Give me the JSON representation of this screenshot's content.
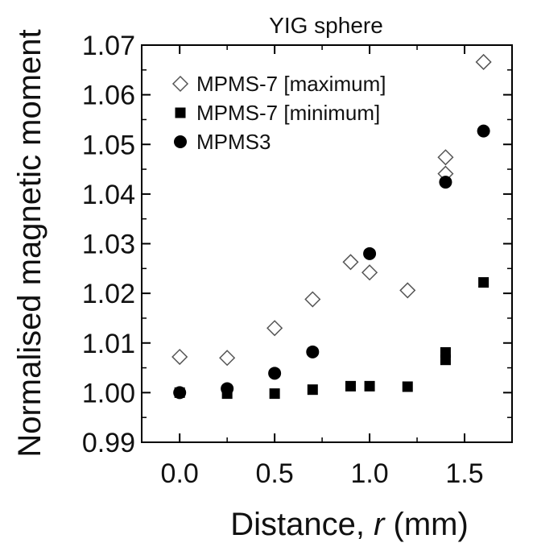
{
  "chart_data": {
    "type": "scatter",
    "title": "YIG sphere",
    "xlabel_prefix": "Distance, ",
    "xlabel_var": "r",
    "xlabel_suffix": " (mm)",
    "ylabel": "Normalised magnetic moment",
    "xlim": [
      -0.2,
      1.75
    ],
    "ylim": [
      0.99,
      1.07
    ],
    "xticks": [
      0.0,
      0.5,
      1.0,
      1.5
    ],
    "xtick_labels": [
      "0.0",
      "0.5",
      "1.0",
      "1.5"
    ],
    "yticks": [
      0.99,
      1.0,
      1.01,
      1.02,
      1.03,
      1.04,
      1.05,
      1.06,
      1.07
    ],
    "ytick_labels": [
      "0.99",
      "1.00",
      "1.01",
      "1.02",
      "1.03",
      "1.04",
      "1.05",
      "1.06",
      "1.07"
    ],
    "legend_position": "top-left",
    "series": [
      {
        "name": "MPMS-7 [maximum]",
        "marker": "open-diamond",
        "points": [
          [
            0.0,
            1.0072
          ],
          [
            0.25,
            1.007
          ],
          [
            0.5,
            1.013
          ],
          [
            0.7,
            1.0188
          ],
          [
            0.9,
            1.0263
          ],
          [
            1.0,
            1.0242
          ],
          [
            1.2,
            1.0206
          ],
          [
            1.4,
            1.0441
          ],
          [
            1.4,
            1.0474
          ],
          [
            1.6,
            1.0666
          ]
        ]
      },
      {
        "name": "MPMS-7 [minimum]",
        "marker": "filled-square",
        "points": [
          [
            0.0,
            1.0
          ],
          [
            0.25,
            0.9998
          ],
          [
            0.5,
            0.9998
          ],
          [
            0.7,
            1.0006
          ],
          [
            0.9,
            1.0013
          ],
          [
            1.0,
            1.0013
          ],
          [
            1.2,
            1.0012
          ],
          [
            1.4,
            1.0066
          ],
          [
            1.4,
            1.0081
          ],
          [
            1.6,
            1.0222
          ]
        ]
      },
      {
        "name": "MPMS3",
        "marker": "filled-circle",
        "points": [
          [
            0.0,
            1.0
          ],
          [
            0.25,
            1.0008
          ],
          [
            0.5,
            1.0039
          ],
          [
            0.7,
            1.0082
          ],
          [
            1.0,
            1.028
          ],
          [
            1.4,
            1.0424
          ],
          [
            1.6,
            1.0527
          ]
        ]
      }
    ],
    "colors": {
      "marker": "#000000",
      "open_marker_stroke": "#555555",
      "axes": "#000000"
    }
  }
}
